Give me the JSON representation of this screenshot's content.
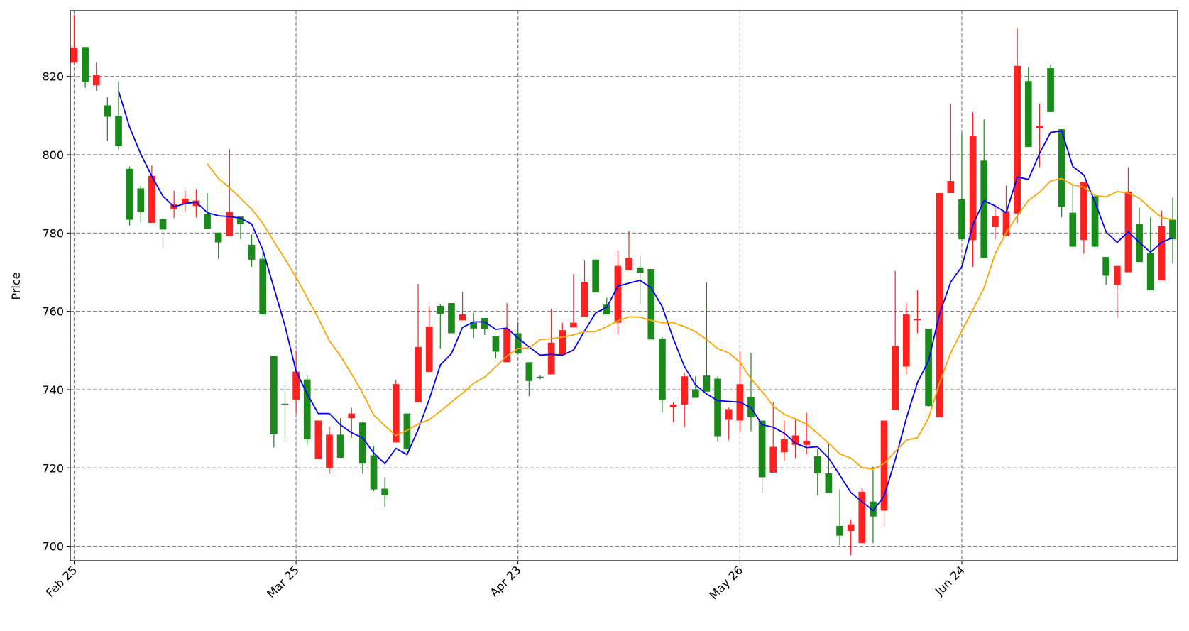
{
  "chart_data": {
    "type": "candlestick",
    "ylabel": "Price",
    "x": [
      0,
      1,
      2,
      3,
      4,
      5,
      6,
      7,
      8,
      9,
      10,
      11,
      12,
      13,
      14,
      15,
      16,
      17,
      18,
      19,
      20,
      21,
      22,
      23,
      24,
      25,
      26,
      27,
      28,
      29,
      30,
      31,
      32,
      33,
      34,
      35,
      36,
      37,
      38,
      39,
      40,
      41,
      42,
      43,
      44,
      45,
      46,
      47,
      48,
      49,
      50,
      51,
      52,
      53,
      54,
      55,
      56,
      57,
      58,
      59,
      60,
      61,
      62,
      63,
      64,
      65,
      66,
      67,
      68,
      69,
      70,
      71,
      72,
      73,
      74,
      75,
      76,
      77,
      78,
      79,
      80,
      81,
      82,
      83,
      84,
      85,
      86,
      87,
      88,
      89,
      90,
      91,
      92,
      93,
      94,
      95,
      96,
      97,
      98,
      99
    ],
    "xlim": [
      -0.35,
      99.45
    ],
    "xticks": [
      {
        "value": 0,
        "label": "Feb 25"
      },
      {
        "value": 20,
        "label": "Mar 25"
      },
      {
        "value": 40,
        "label": "Apr 23"
      },
      {
        "value": 60,
        "label": "May 26"
      },
      {
        "value": 80,
        "label": "Jun 24"
      }
    ],
    "ylim": [
      696.3,
      836.8
    ],
    "yticks": [
      700,
      720,
      740,
      760,
      780,
      800,
      820
    ],
    "grid": true,
    "up_color": "#ff2020",
    "down_color": "#1a8a1a",
    "open": [
      823.5,
      827.5,
      817.7,
      812.6,
      809.9,
      796.4,
      791.4,
      782.6,
      783.6,
      786.1,
      787.3,
      786.9,
      784.8,
      780.1,
      779.2,
      784.2,
      777.0,
      773.4,
      748.6,
      736.4,
      737.4,
      742.6,
      722.3,
      720.0,
      728.5,
      732.7,
      731.6,
      723.2,
      714.7,
      726.5,
      733.9,
      736.8,
      744.5,
      761.4,
      762.1,
      757.7,
      757.1,
      758.3,
      753.6,
      747.0,
      754.4,
      747.0,
      743.3,
      743.9,
      749.0,
      755.9,
      758.6,
      773.2,
      761.7,
      757.1,
      770.5,
      771.2,
      770.8,
      753.0,
      735.6,
      736.2,
      740.1,
      743.6,
      742.8,
      732.3,
      732.1,
      738.1,
      732.1,
      718.8,
      724.0,
      725.9,
      725.9,
      723.0,
      718.6,
      705.2,
      703.9,
      700.8,
      711.4,
      709.1,
      734.8,
      745.9,
      757.7,
      755.6,
      732.9,
      790.2,
      788.6,
      778.2,
      798.5,
      781.5,
      779.2,
      785.0,
      818.8,
      806.8,
      822.1,
      806.5,
      785.2,
      778.2,
      789.4,
      773.9,
      766.8,
      770.0,
      782.3,
      774.9,
      767.9,
      783.4
    ],
    "high": [
      835.7,
      827.5,
      823.5,
      814.8,
      818.8,
      797.0,
      792.1,
      797.2,
      783.6,
      790.8,
      790.9,
      791.2,
      790.2,
      780.1,
      801.4,
      784.2,
      779.6,
      775.7,
      748.6,
      741.2,
      750.0,
      743.6,
      732.1,
      730.6,
      732.7,
      735.4,
      731.8,
      725.6,
      717.6,
      742.4,
      733.9,
      767.0,
      761.4,
      761.8,
      762.1,
      765.0,
      759.6,
      758.3,
      753.6,
      762.1,
      757.3,
      747.0,
      743.6,
      760.6,
      757.1,
      769.5,
      773.0,
      773.2,
      763.5,
      775.5,
      780.5,
      774.3,
      770.8,
      753.4,
      736.8,
      744.3,
      743.4,
      767.4,
      743.4,
      735.4,
      749.9,
      749.4,
      732.1,
      736.8,
      732.1,
      732.7,
      734.1,
      724.8,
      726.1,
      714.5,
      706.8,
      714.9,
      720.3,
      732.1,
      770.3,
      762.1,
      765.4,
      755.6,
      790.2,
      813.0,
      805.5,
      810.9,
      809.0,
      787.3,
      792.1,
      832.2,
      822.3,
      813.0,
      823.1,
      806.5,
      792.3,
      793.1,
      790.0,
      773.9,
      771.6,
      796.8,
      786.5,
      784.0,
      785.7,
      789.0
    ],
    "low": [
      823.5,
      817.1,
      816.3,
      803.5,
      801.4,
      781.9,
      782.8,
      782.6,
      776.3,
      783.8,
      785.4,
      784.0,
      781.1,
      773.4,
      779.2,
      778.4,
      771.4,
      759.2,
      725.2,
      726.7,
      733.9,
      725.9,
      722.3,
      718.5,
      722.6,
      727.7,
      718.6,
      714.1,
      709.9,
      726.5,
      723.4,
      736.8,
      744.5,
      750.5,
      754.4,
      757.7,
      753.2,
      754.0,
      748.0,
      747.0,
      749.2,
      738.3,
      742.6,
      743.9,
      748.6,
      755.9,
      758.6,
      764.8,
      759.2,
      754.2,
      770.5,
      762.0,
      752.8,
      734.1,
      731.7,
      730.4,
      737.9,
      739.5,
      726.7,
      727.1,
      729.2,
      729.4,
      713.6,
      718.8,
      721.9,
      722.5,
      723.4,
      713.0,
      713.6,
      700.2,
      697.7,
      700.8,
      700.8,
      705.2,
      734.8,
      744.0,
      754.4,
      735.6,
      732.9,
      790.2,
      778.4,
      771.4,
      773.7,
      778.4,
      779.2,
      782.6,
      802.0,
      796.8,
      810.9,
      784.0,
      776.5,
      774.7,
      776.5,
      766.8,
      758.3,
      770.0,
      772.6,
      765.4,
      767.9,
      772.2
    ],
    "close": [
      827.4,
      818.6,
      820.4,
      809.7,
      802.2,
      783.4,
      785.4,
      794.6,
      780.9,
      787.3,
      788.8,
      788.3,
      781.1,
      777.6,
      785.4,
      782.3,
      773.2,
      759.2,
      728.6,
      736.2,
      744.6,
      727.3,
      732.1,
      728.5,
      722.6,
      733.9,
      721.1,
      714.5,
      713.0,
      741.4,
      724.8,
      750.9,
      756.1,
      759.4,
      754.4,
      759.2,
      755.6,
      755.4,
      749.7,
      755.4,
      749.2,
      742.2,
      743.0,
      752.0,
      755.2,
      757.1,
      767.5,
      764.8,
      759.2,
      771.6,
      773.7,
      769.9,
      752.8,
      737.4,
      736.2,
      743.4,
      737.9,
      739.5,
      728.1,
      735.0,
      741.4,
      732.9,
      717.6,
      725.4,
      727.3,
      728.3,
      726.9,
      718.6,
      713.6,
      702.7,
      705.6,
      713.9,
      707.6,
      732.1,
      751.1,
      759.2,
      758.1,
      735.8,
      790.2,
      793.3,
      778.4,
      804.7,
      773.7,
      784.4,
      785.6,
      822.7,
      802.0,
      807.3,
      810.9,
      786.7,
      776.5,
      793.1,
      776.5,
      769.1,
      771.6,
      790.6,
      772.6,
      765.4,
      781.7,
      778.4
    ],
    "lines": [
      {
        "color": "#0000ff",
        "values": [
          null,
          null,
          null,
          null,
          816.3,
          807.0,
          800.2,
          794.5,
          789.4,
          786.7,
          787.5,
          787.9,
          785.2,
          784.4,
          784.2,
          783.8,
          782.3,
          775.7,
          766.0,
          756.3,
          744.7,
          738.9,
          733.9,
          733.9,
          731.0,
          729.0,
          727.7,
          723.8,
          721.1,
          725.0,
          723.4,
          729.8,
          737.5,
          746.3,
          749.2,
          755.9,
          757.3,
          757.3,
          755.4,
          755.7,
          753.2,
          750.9,
          748.8,
          749.0,
          748.8,
          750.1,
          755.0,
          759.6,
          761.0,
          766.4,
          767.2,
          767.9,
          766.0,
          761.2,
          753.0,
          745.9,
          741.2,
          738.9,
          737.2,
          737.0,
          736.8,
          735.4,
          731.0,
          730.4,
          728.9,
          726.3,
          725.2,
          725.4,
          722.5,
          718.2,
          713.7,
          711.4,
          709.1,
          712.8,
          722.1,
          732.7,
          741.8,
          747.4,
          759.4,
          767.5,
          771.4,
          782.1,
          788.3,
          786.9,
          785.2,
          794.3,
          793.7,
          800.3,
          805.7,
          806.1,
          797.0,
          794.8,
          787.9,
          780.3,
          777.6,
          780.3,
          777.6,
          775.1,
          777.6,
          778.8
        ]
      },
      {
        "color": "#ffa500",
        "values": [
          null,
          null,
          null,
          null,
          null,
          null,
          null,
          null,
          null,
          null,
          null,
          null,
          797.7,
          793.9,
          791.6,
          788.9,
          786.1,
          782.5,
          777.8,
          773.4,
          768.7,
          763.5,
          758.3,
          752.5,
          748.6,
          744.0,
          739.1,
          733.5,
          730.8,
          728.3,
          729.6,
          731.2,
          732.3,
          734.5,
          736.8,
          739.1,
          741.6,
          743.2,
          745.9,
          748.6,
          750.5,
          750.7,
          752.8,
          753.0,
          753.4,
          754.0,
          754.8,
          754.8,
          756.1,
          757.6,
          758.6,
          758.5,
          757.7,
          757.1,
          757.1,
          756.1,
          754.8,
          752.8,
          750.5,
          749.4,
          747.0,
          742.8,
          739.5,
          735.8,
          733.7,
          732.5,
          731.2,
          728.9,
          726.3,
          723.6,
          722.5,
          720.1,
          719.7,
          721.1,
          724.2,
          727.1,
          727.7,
          732.7,
          741.8,
          749.4,
          755.0,
          760.4,
          766.0,
          774.7,
          780.1,
          784.4,
          788.3,
          790.4,
          793.3,
          793.9,
          792.3,
          791.7,
          789.6,
          789.2,
          790.6,
          790.2,
          788.9,
          786.3,
          784.0,
          783.4
        ]
      }
    ]
  }
}
